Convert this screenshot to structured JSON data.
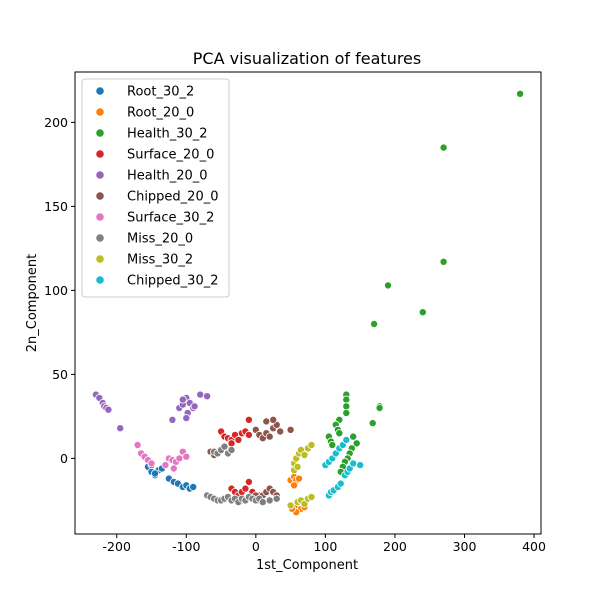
{
  "chart_data": {
    "type": "scatter",
    "title": "PCA visualization of features",
    "xlabel": "1st_Component",
    "ylabel": "2n_Component",
    "xlim": [
      -260,
      410
    ],
    "ylim": [
      -45,
      230
    ],
    "xticks": [
      -200,
      -100,
      0,
      100,
      200,
      300,
      400
    ],
    "yticks": [
      0,
      50,
      100,
      150,
      200
    ],
    "legend_position": "top-left",
    "grid": false,
    "series": [
      {
        "name": "Root_30_2",
        "color": "#1f77b4",
        "points": [
          [
            -155,
            -5
          ],
          [
            -150,
            -8
          ],
          [
            -145,
            -10
          ],
          [
            -140,
            -7
          ],
          [
            -135,
            -6
          ],
          [
            -150,
            -4
          ],
          [
            -125,
            -12
          ],
          [
            -118,
            -14
          ],
          [
            -112,
            -15
          ],
          [
            -105,
            -17
          ],
          [
            -100,
            -16
          ],
          [
            -95,
            -18
          ],
          [
            -90,
            -17
          ],
          [
            -145,
            -9
          ]
        ]
      },
      {
        "name": "Root_20_0",
        "color": "#ff7f0e",
        "points": [
          [
            50,
            -13
          ],
          [
            55,
            -11
          ],
          [
            58,
            -13
          ],
          [
            62,
            -12
          ],
          [
            55,
            -16
          ],
          [
            60,
            -28
          ],
          [
            65,
            -30
          ],
          [
            70,
            -29
          ],
          [
            58,
            -32
          ],
          [
            52,
            -30
          ]
        ]
      },
      {
        "name": "Health_30_2",
        "color": "#2ca02c",
        "points": [
          [
            380,
            217
          ],
          [
            270,
            185
          ],
          [
            270,
            117
          ],
          [
            190,
            103
          ],
          [
            240,
            87
          ],
          [
            170,
            80
          ],
          [
            130,
            38
          ],
          [
            130,
            35
          ],
          [
            130,
            31
          ],
          [
            130,
            27
          ],
          [
            120,
            23
          ],
          [
            115,
            20
          ],
          [
            118,
            17
          ],
          [
            120,
            15
          ],
          [
            105,
            13
          ],
          [
            108,
            10
          ],
          [
            110,
            8
          ],
          [
            140,
            13
          ],
          [
            145,
            9
          ],
          [
            138,
            6
          ],
          [
            135,
            3
          ],
          [
            132,
            0
          ],
          [
            128,
            -2
          ],
          [
            125,
            -5
          ],
          [
            122,
            -8
          ],
          [
            178,
            31
          ],
          [
            178,
            30
          ],
          [
            168,
            21
          ]
        ]
      },
      {
        "name": "Surface_20_0",
        "color": "#d62728",
        "points": [
          [
            -60,
            3
          ],
          [
            -50,
            16
          ],
          [
            -45,
            13
          ],
          [
            -40,
            12
          ],
          [
            -35,
            11
          ],
          [
            -30,
            14
          ],
          [
            -25,
            11
          ],
          [
            -20,
            15
          ],
          [
            -15,
            16
          ],
          [
            -10,
            14
          ],
          [
            -35,
            9
          ],
          [
            -10,
            23
          ],
          [
            -35,
            -18
          ],
          [
            -30,
            -20
          ],
          [
            -25,
            -22
          ],
          [
            -20,
            -20
          ],
          [
            -15,
            -18
          ],
          [
            -10,
            -14
          ],
          [
            -5,
            -20
          ],
          [
            5,
            -22
          ],
          [
            -20,
            -25
          ]
        ]
      },
      {
        "name": "Health_20_0",
        "color": "#9467bd",
        "points": [
          [
            -230,
            38
          ],
          [
            -225,
            36
          ],
          [
            -220,
            33
          ],
          [
            -218,
            31
          ],
          [
            -215,
            30
          ],
          [
            -212,
            29
          ],
          [
            -195,
            18
          ],
          [
            -120,
            23
          ],
          [
            -110,
            30
          ],
          [
            -105,
            32
          ],
          [
            -100,
            36
          ],
          [
            -95,
            33
          ],
          [
            -90,
            30
          ],
          [
            -88,
            31
          ],
          [
            -80,
            38
          ],
          [
            -70,
            37
          ],
          [
            -98,
            27
          ],
          [
            -105,
            35
          ],
          [
            -100,
            24
          ]
        ]
      },
      {
        "name": "Chipped_20_0",
        "color": "#8c564b",
        "points": [
          [
            -65,
            4
          ],
          [
            -60,
            2
          ],
          [
            0,
            17
          ],
          [
            5,
            14
          ],
          [
            10,
            12
          ],
          [
            15,
            15
          ],
          [
            20,
            13
          ],
          [
            25,
            18
          ],
          [
            30,
            20
          ],
          [
            35,
            16
          ],
          [
            15,
            22
          ],
          [
            25,
            23
          ],
          [
            50,
            17
          ],
          [
            0,
            -22
          ],
          [
            5,
            -25
          ],
          [
            10,
            -22
          ],
          [
            15,
            -20
          ],
          [
            20,
            -18
          ],
          [
            25,
            -20
          ],
          [
            30,
            -22
          ]
        ]
      },
      {
        "name": "Surface_30_2",
        "color": "#e377c2",
        "points": [
          [
            -170,
            8
          ],
          [
            -165,
            3
          ],
          [
            -160,
            1
          ],
          [
            -155,
            -1
          ],
          [
            -150,
            -3
          ],
          [
            -125,
            0
          ],
          [
            -120,
            -1
          ],
          [
            -115,
            -2
          ],
          [
            -110,
            0
          ],
          [
            -105,
            4
          ],
          [
            -100,
            1
          ],
          [
            -130,
            -4
          ],
          [
            -118,
            -6
          ]
        ]
      },
      {
        "name": "Miss_20_0",
        "color": "#7f7f7f",
        "points": [
          [
            -60,
            4
          ],
          [
            -55,
            3
          ],
          [
            -50,
            5
          ],
          [
            -45,
            7
          ],
          [
            -40,
            3
          ],
          [
            -35,
            5
          ],
          [
            -70,
            -22
          ],
          [
            -65,
            -23
          ],
          [
            -60,
            -24
          ],
          [
            -55,
            -25
          ],
          [
            -50,
            -25
          ],
          [
            -45,
            -24
          ],
          [
            -40,
            -23
          ],
          [
            -35,
            -25
          ],
          [
            -30,
            -24
          ],
          [
            -25,
            -26
          ],
          [
            -20,
            -24
          ],
          [
            -15,
            -25
          ],
          [
            -10,
            -23
          ],
          [
            -5,
            -24
          ],
          [
            0,
            -25
          ],
          [
            5,
            -24
          ],
          [
            10,
            -26
          ],
          [
            20,
            -25
          ],
          [
            30,
            -24
          ]
        ]
      },
      {
        "name": "Miss_30_2",
        "color": "#bcbd22",
        "points": [
          [
            55,
            -3
          ],
          [
            58,
            0
          ],
          [
            62,
            3
          ],
          [
            65,
            5
          ],
          [
            70,
            2
          ],
          [
            75,
            6
          ],
          [
            80,
            8
          ],
          [
            55,
            -7
          ],
          [
            60,
            -5
          ],
          [
            60,
            -26
          ],
          [
            65,
            -25
          ],
          [
            70,
            -27
          ],
          [
            75,
            -24
          ],
          [
            80,
            -23
          ],
          [
            50,
            -28
          ]
        ]
      },
      {
        "name": "Chipped_30_2",
        "color": "#17becf",
        "points": [
          [
            100,
            -4
          ],
          [
            105,
            -2
          ],
          [
            110,
            0
          ],
          [
            115,
            3
          ],
          [
            120,
            6
          ],
          [
            125,
            8
          ],
          [
            130,
            11
          ],
          [
            105,
            -22
          ],
          [
            108,
            -20
          ],
          [
            112,
            -19
          ],
          [
            118,
            -17
          ],
          [
            122,
            -15
          ],
          [
            128,
            -10
          ],
          [
            132,
            -8
          ],
          [
            135,
            -6
          ],
          [
            150,
            -4
          ],
          [
            140,
            -3
          ]
        ]
      }
    ]
  }
}
